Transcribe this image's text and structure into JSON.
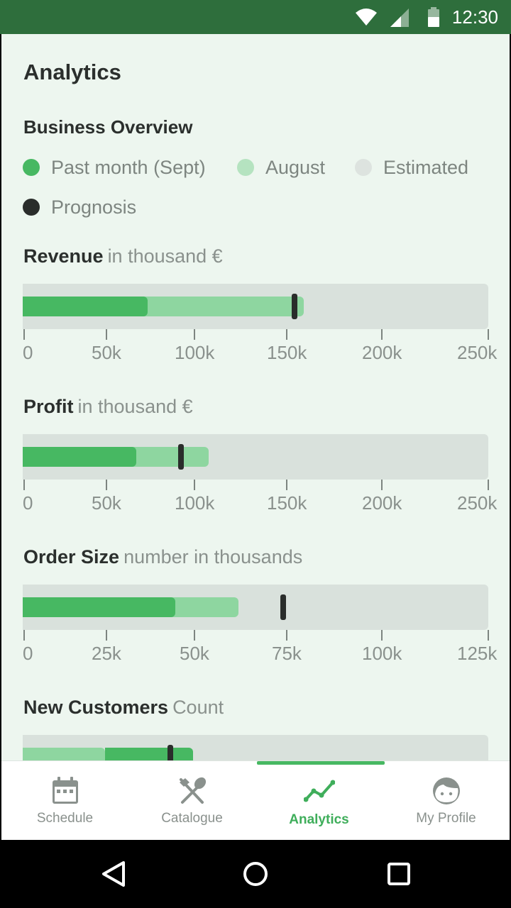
{
  "status_bar": {
    "time": "12:30"
  },
  "page": {
    "title": "Analytics",
    "section_title": "Business Overview"
  },
  "legend": [
    {
      "label": "Past month (Sept)",
      "color": "#47b862"
    },
    {
      "label": "August",
      "color": "#b5e3c0"
    },
    {
      "label": "Estimated",
      "color": "#dde3df"
    },
    {
      "label": "Prognosis",
      "color": "#2a2d2b"
    }
  ],
  "metrics": [
    {
      "name": "Revenue",
      "unit": "in thousand €",
      "max": 250,
      "past": 67,
      "august": 151,
      "prognosis": 146,
      "ticks": [
        "0",
        "50k",
        "100k",
        "150k",
        "200k",
        "250k"
      ]
    },
    {
      "name": "Profit",
      "unit": "in thousand €",
      "max": 250,
      "past": 61,
      "august": 100,
      "prognosis": 85,
      "ticks": [
        "0",
        "50k",
        "100k",
        "150k",
        "200k",
        "250k"
      ]
    },
    {
      "name": "Order Size",
      "unit": "number in thousands",
      "max": 125,
      "past": 41,
      "august": 58,
      "prognosis": 70,
      "ticks": [
        "0",
        "25k",
        "50k",
        "75k",
        "100k",
        "125k"
      ]
    },
    {
      "name": "New Customers",
      "unit": "Count"
    }
  ],
  "nav": {
    "items": [
      {
        "label": "Schedule",
        "icon": "calendar-icon"
      },
      {
        "label": "Catalogue",
        "icon": "fork-spoon-icon"
      },
      {
        "label": "Analytics",
        "icon": "trend-line-icon",
        "active": true
      },
      {
        "label": "My Profile",
        "icon": "face-icon"
      }
    ]
  },
  "colors": {
    "accent": "#47b862",
    "august": "#8ed6a0",
    "track": "#d9e1dc",
    "status_bar": "#2e6e3c"
  }
}
